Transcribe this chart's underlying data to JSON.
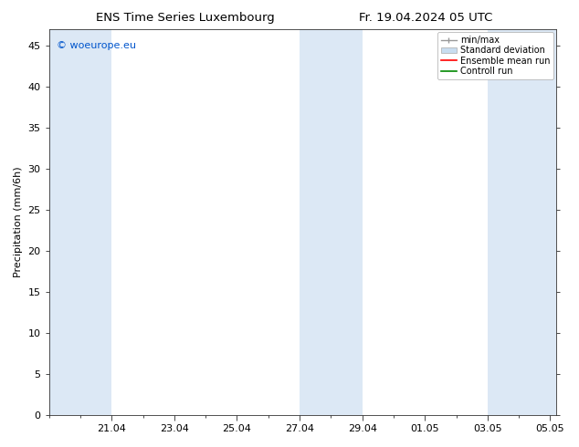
{
  "title_left": "ENS Time Series Luxembourg",
  "title_right": "Fr. 19.04.2024 05 UTC",
  "ylabel": "Precipitation (mm/6h)",
  "watermark": "© woeurope.eu",
  "watermark_color": "#0055cc",
  "background_color": "#ffffff",
  "plot_bg_color": "#ffffff",
  "ylim": [
    0,
    47
  ],
  "yticks": [
    0,
    5,
    10,
    15,
    20,
    25,
    30,
    35,
    40,
    45
  ],
  "xtick_labels": [
    "21.04",
    "23.04",
    "25.04",
    "27.04",
    "29.04",
    "01.05",
    "03.05",
    "05.05"
  ],
  "xtick_positions": [
    21,
    23,
    25,
    27,
    29,
    31,
    33,
    35
  ],
  "shade_color": "#dce8f5",
  "legend_labels": [
    "min/max",
    "Standard deviation",
    "Ensemble mean run",
    "Controll run"
  ],
  "minmax_color": "#999999",
  "std_color": "#c8ddf0",
  "mean_color": "#ff0000",
  "ctrl_color": "#008800",
  "x_min": 19.0,
  "x_max": 35.2,
  "font_size": 8,
  "title_font_size": 9.5,
  "shaded_bands": [
    [
      19.0,
      21.0
    ],
    [
      21.0,
      22.0
    ],
    [
      27.0,
      27.5
    ],
    [
      27.5,
      29.0
    ],
    [
      33.0,
      35.2
    ]
  ]
}
